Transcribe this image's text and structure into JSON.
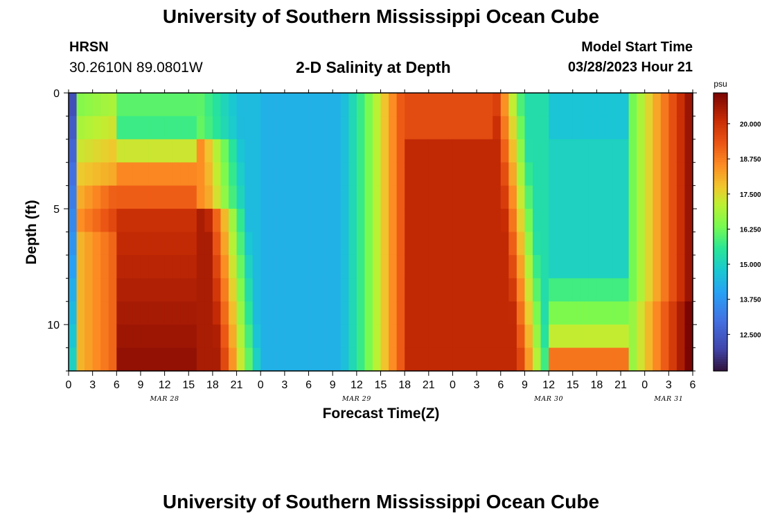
{
  "header": {
    "title": "University of Southern Mississippi Ocean Cube",
    "station": "HRSN",
    "coords": "30.2610N  89.0801W",
    "plot_title": "2-D Salinity at Depth",
    "start_label": "Model Start Time",
    "start_value": "03/28/2023 Hour 21"
  },
  "footer": {
    "title": "University of Southern Mississippi Ocean Cube"
  },
  "colorbar": {
    "unit": "psu",
    "min": 11.2,
    "max": 21.1,
    "tick_values": [
      20.0,
      18.75,
      17.5,
      16.25,
      15.0,
      13.75,
      12.5
    ],
    "tick_labels": [
      "20.000",
      "18.750",
      "17.500",
      "16.250",
      "15.000",
      "13.750",
      "12.500"
    ]
  },
  "chart_data": {
    "type": "heatmap",
    "title": "2-D Salinity at Depth",
    "xlabel": "Forecast Time(Z)",
    "ylabel": "Depth (ft)",
    "x_hours_range": [
      0,
      78
    ],
    "y_depth_range": [
      0,
      12
    ],
    "x_ticks": [
      {
        "hour": 0,
        "label": "0"
      },
      {
        "hour": 3,
        "label": "3"
      },
      {
        "hour": 6,
        "label": "6"
      },
      {
        "hour": 9,
        "label": "9"
      },
      {
        "hour": 12,
        "label": "12"
      },
      {
        "hour": 15,
        "label": "15"
      },
      {
        "hour": 18,
        "label": "18"
      },
      {
        "hour": 21,
        "label": "21"
      },
      {
        "hour": 24,
        "label": "0"
      },
      {
        "hour": 27,
        "label": "3"
      },
      {
        "hour": 30,
        "label": "6"
      },
      {
        "hour": 33,
        "label": "9"
      },
      {
        "hour": 36,
        "label": "12"
      },
      {
        "hour": 39,
        "label": "15"
      },
      {
        "hour": 42,
        "label": "18"
      },
      {
        "hour": 45,
        "label": "21"
      },
      {
        "hour": 48,
        "label": "0"
      },
      {
        "hour": 51,
        "label": "3"
      },
      {
        "hour": 54,
        "label": "6"
      },
      {
        "hour": 57,
        "label": "9"
      },
      {
        "hour": 60,
        "label": "12"
      },
      {
        "hour": 63,
        "label": "15"
      },
      {
        "hour": 66,
        "label": "18"
      },
      {
        "hour": 69,
        "label": "21"
      },
      {
        "hour": 72,
        "label": "0"
      },
      {
        "hour": 75,
        "label": "3"
      },
      {
        "hour": 78,
        "label": "6"
      }
    ],
    "date_labels": [
      {
        "hour": 12,
        "label": "MAR 28"
      },
      {
        "hour": 36,
        "label": "MAR 29"
      },
      {
        "hour": 60,
        "label": "MAR 30"
      },
      {
        "hour": 75,
        "label": "MAR 31"
      }
    ],
    "y_ticks": [
      {
        "depth": 0,
        "label": "0"
      },
      {
        "depth": 5,
        "label": "5"
      },
      {
        "depth": 10,
        "label": "10"
      }
    ],
    "salinity_features": [
      {
        "name": "surface_fresh_corner",
        "hour": 0,
        "depth": 0,
        "value": 11.3
      },
      {
        "name": "bottom_high_mar28",
        "hour": 9,
        "depth": 11,
        "value": 20.9
      },
      {
        "name": "low_band_mar29",
        "hour": 30,
        "depth": 6,
        "value": 14.3
      },
      {
        "name": "high_band_mar29",
        "hour": 48,
        "depth": 6,
        "value": 20.3
      },
      {
        "name": "mid_low_mar30",
        "hour": 63,
        "depth": 5,
        "value": 15.4
      },
      {
        "name": "high_end_mar31",
        "hour": 78,
        "depth": 6,
        "value": 20.9
      }
    ]
  }
}
